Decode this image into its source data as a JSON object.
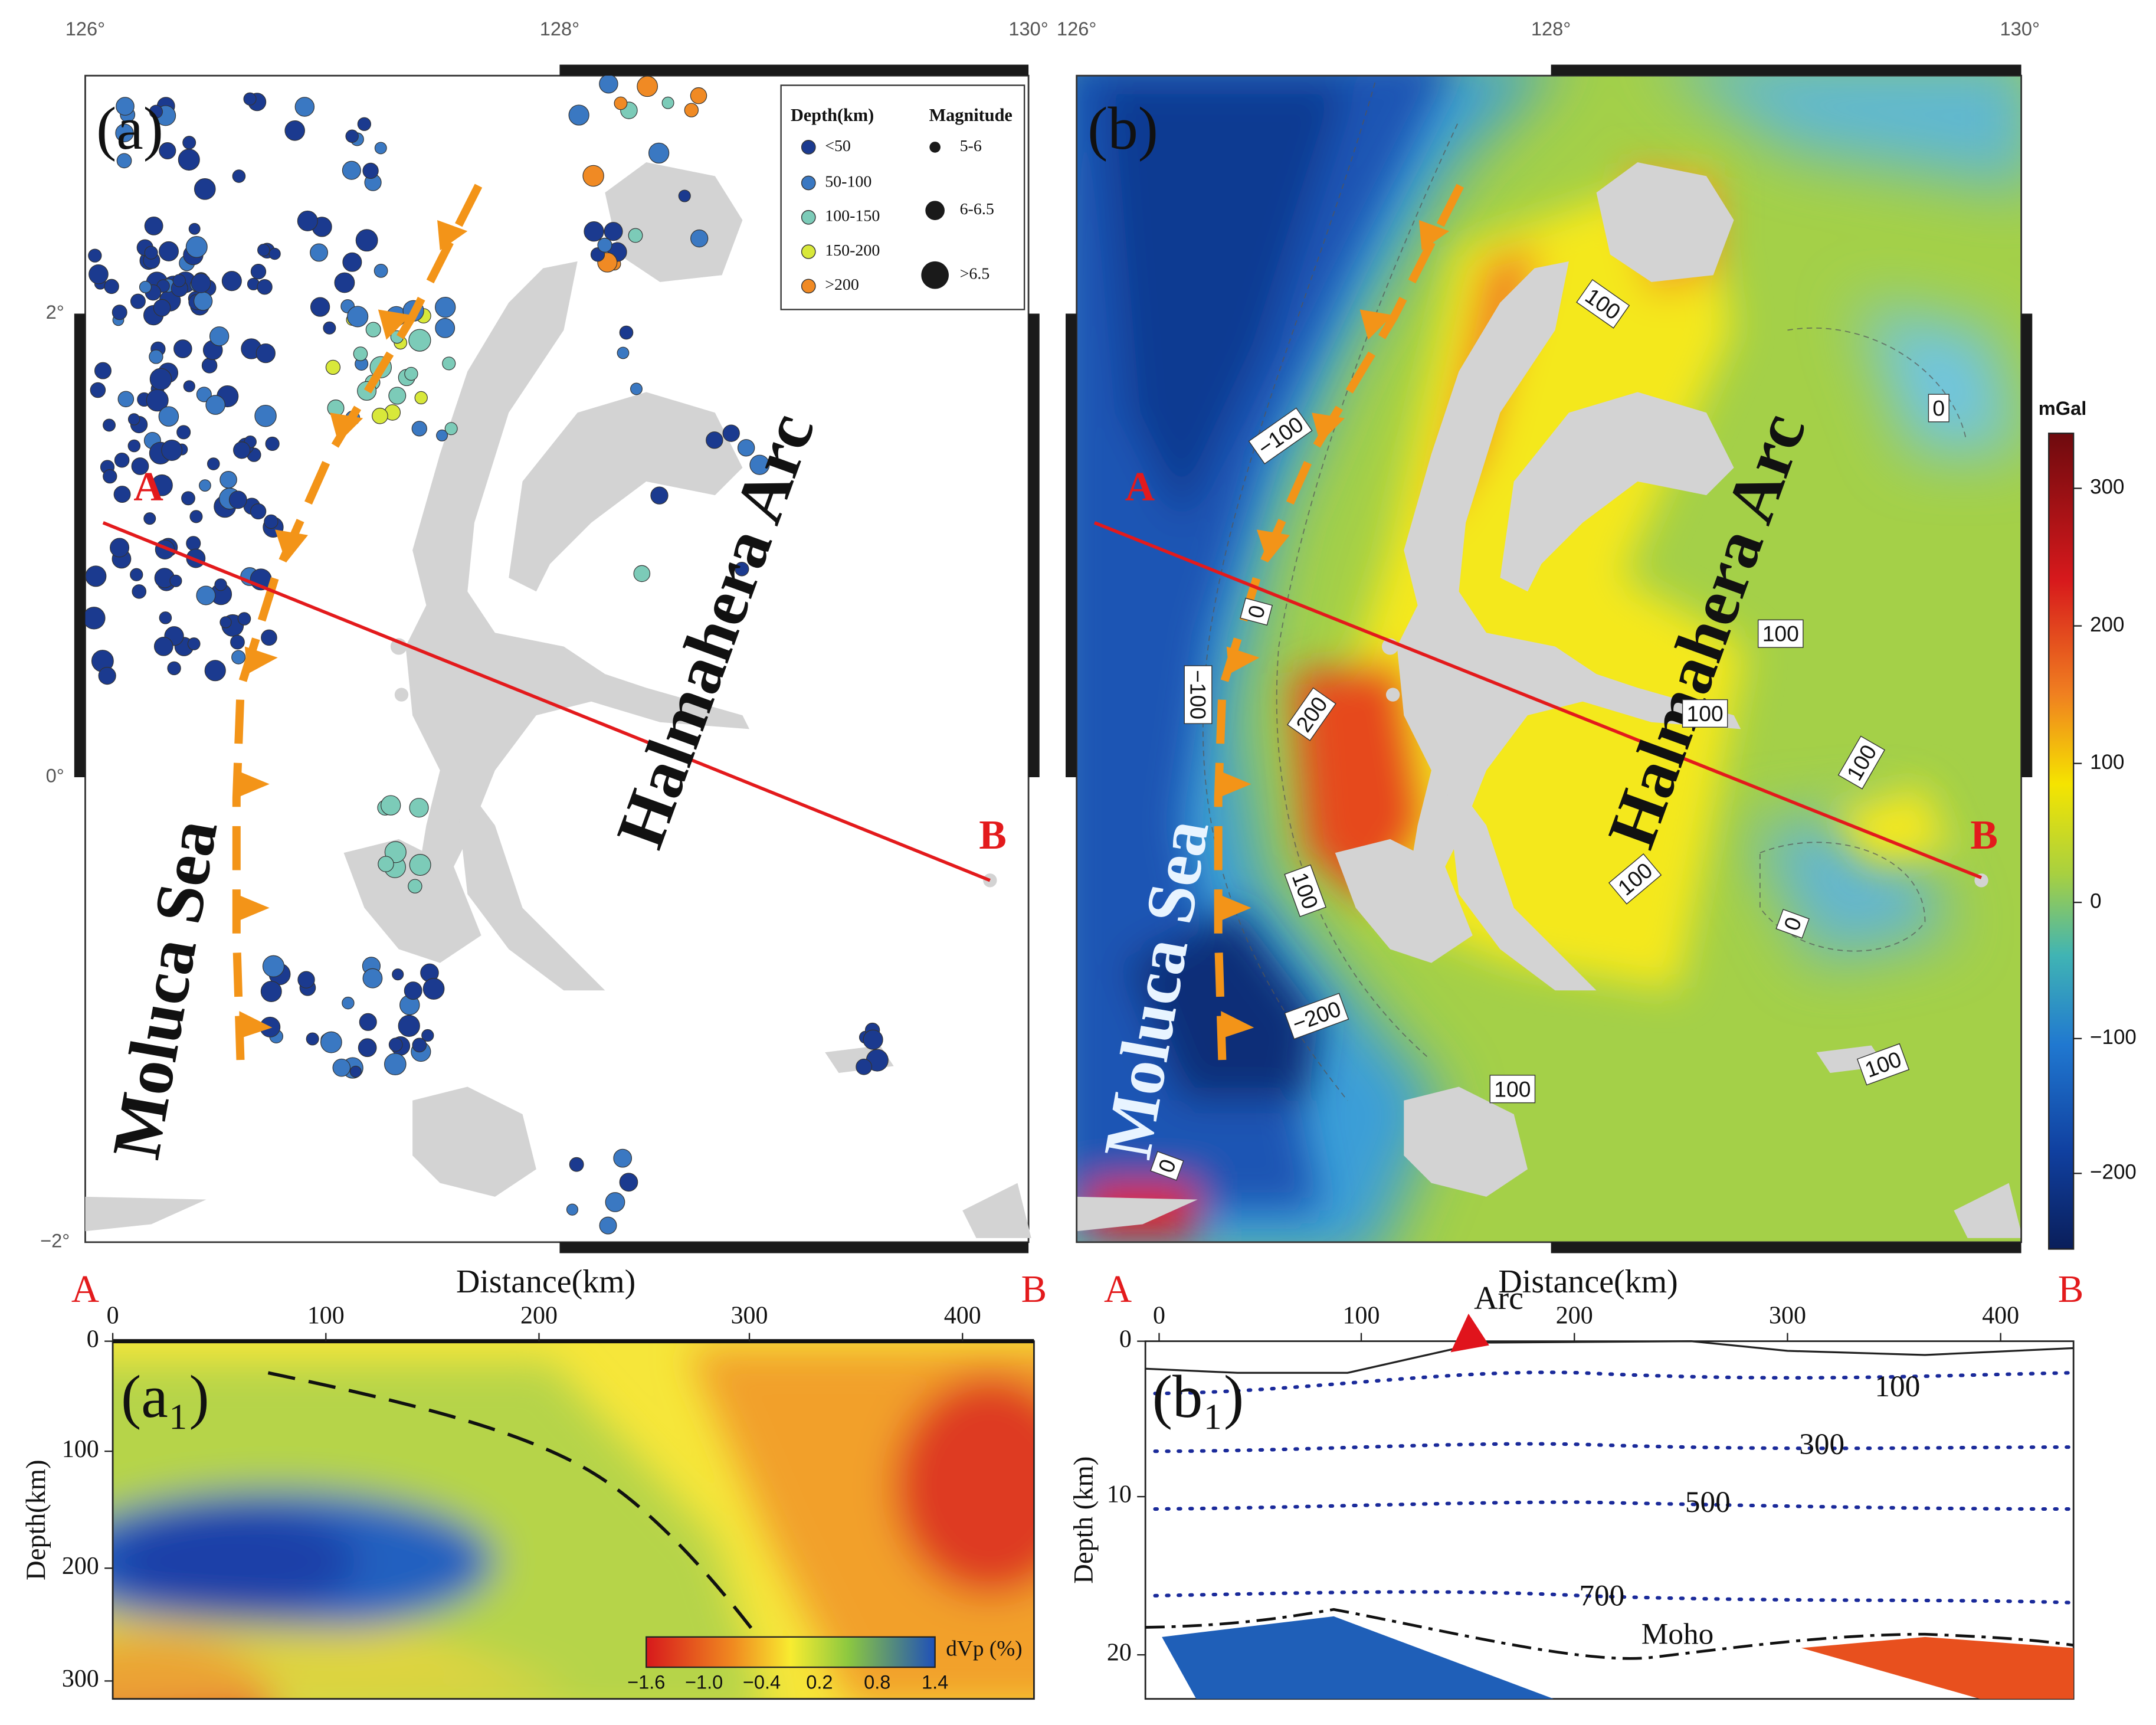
{
  "panel_a": {
    "label": "(a)",
    "lon_ticks": [
      "126°",
      "128°",
      "130°"
    ],
    "lat_ticks": [
      "2°",
      "0°",
      "−2°"
    ],
    "legend": {
      "depth_title": "Depth(km)",
      "depth_classes": [
        "<50",
        "50-100",
        "100-150",
        "150-200",
        ">200"
      ],
      "depth_colors": [
        "#1b3a8f",
        "#3a78c2",
        "#7ccbb8",
        "#d8e83a",
        "#f08a24"
      ],
      "magnitude_title": "Magnitude",
      "magnitude_classes": [
        "5-6",
        "6-6.5",
        ">6.5"
      ]
    },
    "sea_label": "Moluca Sea",
    "arc_label": "Halmahera Arc",
    "profile_start": "A",
    "profile_end": "B"
  },
  "panel_b": {
    "label": "(b)",
    "lon_ticks": [
      "126°",
      "128°",
      "130°"
    ],
    "sea_label": "Moluca Sea",
    "arc_label": "Halmahera Arc",
    "profile_start": "A",
    "profile_end": "B",
    "contour_labels": [
      "100",
      "0",
      "−100",
      "0",
      "−100",
      "200",
      "100",
      "100",
      "100",
      "100",
      "100",
      "0",
      "−200",
      "100",
      "100",
      "0"
    ],
    "colorbar": {
      "unit": "mGal",
      "ticks": [
        "300",
        "200",
        "100",
        "0",
        "−100",
        "−200"
      ]
    }
  },
  "panel_a1": {
    "label": "(a₁)",
    "start": "A",
    "end": "B",
    "x_title": "Distance(km)",
    "x_ticks": [
      "0",
      "100",
      "200",
      "300",
      "400"
    ],
    "y_title": "Depth(km)",
    "y_ticks": [
      "0",
      "100",
      "200",
      "300"
    ],
    "colorbar": {
      "unit": "dVp (%)",
      "ticks": [
        "−1.6",
        "−1.0",
        "−0.4",
        "0.2",
        "0.8",
        "1.4"
      ]
    }
  },
  "panel_b1": {
    "label": "(b₁)",
    "start": "A",
    "end": "B",
    "x_title": "Distance(km)",
    "x_ticks": [
      "0",
      "100",
      "200",
      "300",
      "400"
    ],
    "y_title": "Depth (km)",
    "y_ticks": [
      "0",
      "10",
      "20"
    ],
    "arc_label": "Arc",
    "contour_labels": [
      "100",
      "300",
      "500",
      "700"
    ],
    "moho_label": "Moho"
  }
}
